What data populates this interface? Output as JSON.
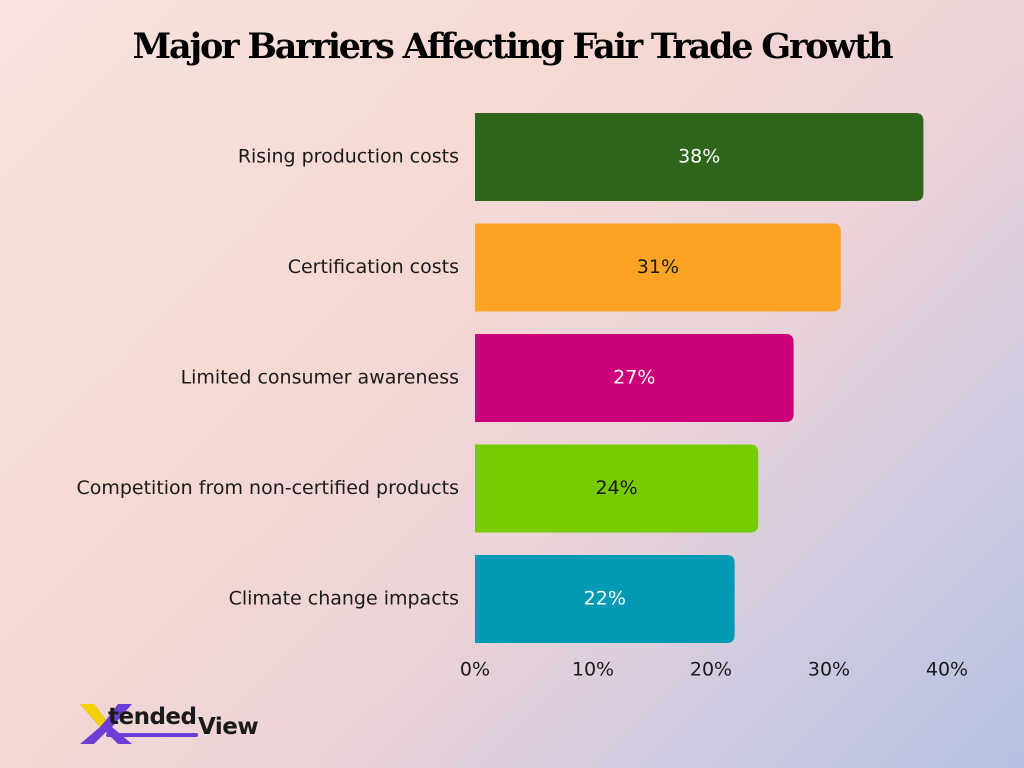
{
  "title": "Major Barriers Affecting Fair Trade Growth",
  "logo": {
    "mark": "X",
    "word1": "tended",
    "word2": "View"
  },
  "chart_data": {
    "type": "bar",
    "orientation": "horizontal",
    "title": "Major Barriers Affecting Fair Trade Growth",
    "categories": [
      "Rising production costs",
      "Certification costs",
      "Limited consumer awareness",
      "Competition from non-certified products",
      "Climate change impacts"
    ],
    "values": [
      38,
      31,
      27,
      24,
      22
    ],
    "value_labels": [
      "38%",
      "31%",
      "27%",
      "24%",
      "22%"
    ],
    "colors": [
      "#2f641b",
      "#fea424",
      "#cc0079",
      "#76cc00",
      "#009ab5"
    ],
    "label_colors": [
      "#ffffff",
      "#1a1a1a",
      "#ffffff",
      "#1a1a1a",
      "#ffffff"
    ],
    "xlim": [
      0,
      40
    ],
    "x_ticks": [
      "0%",
      "10%",
      "20%",
      "30%",
      "40%"
    ],
    "xlabel": "",
    "ylabel": "",
    "grid": false,
    "legend": "none"
  }
}
